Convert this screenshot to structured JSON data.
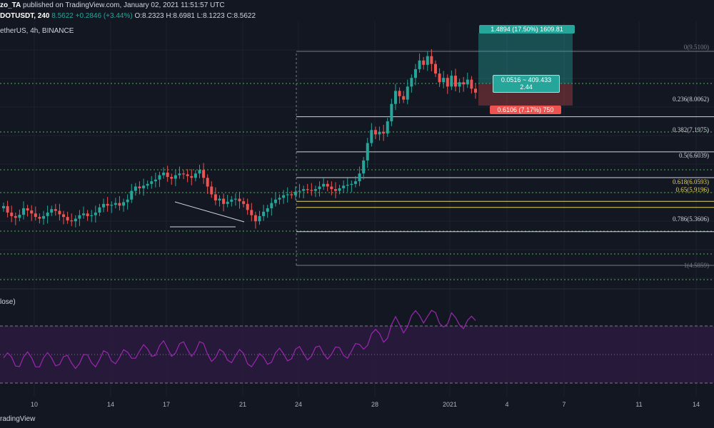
{
  "header": {
    "line1_user": "zo_TA",
    "line1_rest": " published on TradingView.com, January 02, 2021 11:51:57 UTC",
    "symbol": "DOTUSDT, 240",
    "price": "8.5622",
    "change": "+0.2846 (+3.44%)",
    "ohlc": "O:8.2323 H:8.6981 L:8.1223 C:8.5622",
    "subtitle": "etherUS, 4h, BINANCE"
  },
  "rsi": {
    "title": "lose)"
  },
  "fib_labels": [
    {
      "label": "0(9.5100)",
      "color": "#787b86"
    },
    {
      "label": "0.236(8.0062)",
      "color": "#d1d4dc"
    },
    {
      "label": "0.382(7.1975)",
      "color": "#d1d4dc"
    },
    {
      "label": "0.5(6.6039)",
      "color": "#d1d4dc"
    },
    {
      "label": "0.618(6.0593)",
      "color": "#e8d65a"
    },
    {
      "label": "0.65(5.9196)",
      "color": "#e8d65a"
    },
    {
      "label": "0.786(5.3606)",
      "color": "#d1d4dc"
    },
    {
      "label": "1(4.5859)",
      "color": "#787b86"
    }
  ],
  "position": {
    "target": "1.4894 (17.50%) 1609.81",
    "entry_line1": "0.0516 ~ 409.433",
    "entry_line2": "2.44",
    "stop": "0.6106 (7.17%) 750"
  },
  "x_ticks": [
    "10",
    "14",
    "17",
    "21",
    "24",
    "28",
    "2021",
    "4",
    "7",
    "11",
    "14"
  ],
  "watermark": "radingView",
  "colors": {
    "up": "#26a69a",
    "down": "#ef5350",
    "rsi": "#9c27b0",
    "level_green": "#4caf50",
    "fib_gold": "#e8d65a"
  },
  "chart_data": {
    "type": "candlestick",
    "series_close": [
      5.95,
      5.8,
      5.72,
      5.68,
      5.75,
      5.9,
      5.85,
      5.78,
      5.7,
      5.66,
      5.72,
      5.8,
      5.88,
      5.84,
      5.76,
      5.7,
      5.62,
      5.6,
      5.66,
      5.74,
      5.78,
      5.72,
      5.74,
      5.8,
      5.92,
      6.0,
      5.96,
      5.98,
      6.02,
      5.96,
      6.04,
      6.1,
      6.3,
      6.4,
      6.36,
      6.42,
      6.46,
      6.52,
      6.56,
      6.66,
      6.72,
      6.62,
      6.58,
      6.66,
      6.7,
      6.68,
      6.64,
      6.6,
      6.7,
      6.78,
      6.6,
      6.4,
      6.22,
      6.08,
      6.12,
      6.0,
      6.05,
      6.1,
      6.12,
      6.06,
      6.0,
      5.86,
      5.74,
      5.6,
      5.72,
      5.82,
      5.9,
      6.02,
      6.1,
      6.14,
      6.2,
      6.22,
      6.2,
      6.28,
      6.3,
      6.34,
      6.32,
      6.3,
      6.34,
      6.4,
      6.46,
      6.4,
      6.34,
      6.3,
      6.36,
      6.42,
      6.44,
      6.46,
      6.52,
      6.7,
      7.0,
      7.4,
      7.7,
      7.6,
      7.66,
      7.62,
      7.9,
      8.3,
      8.6,
      8.48,
      8.4,
      8.7,
      8.9,
      9.1,
      9.3,
      9.2,
      9.4,
      9.22,
      9.0,
      8.8,
      8.9,
      8.7,
      8.95,
      8.7,
      8.8,
      8.75,
      8.86,
      8.65,
      8.56
    ],
    "y_range": [
      4.0,
      10.5
    ],
    "fib_levels": [
      9.51,
      8.0062,
      7.1975,
      6.6039,
      6.0593,
      5.9196,
      5.3606,
      4.5859
    ],
    "rsi_levels": [
      70,
      50,
      30
    ]
  }
}
